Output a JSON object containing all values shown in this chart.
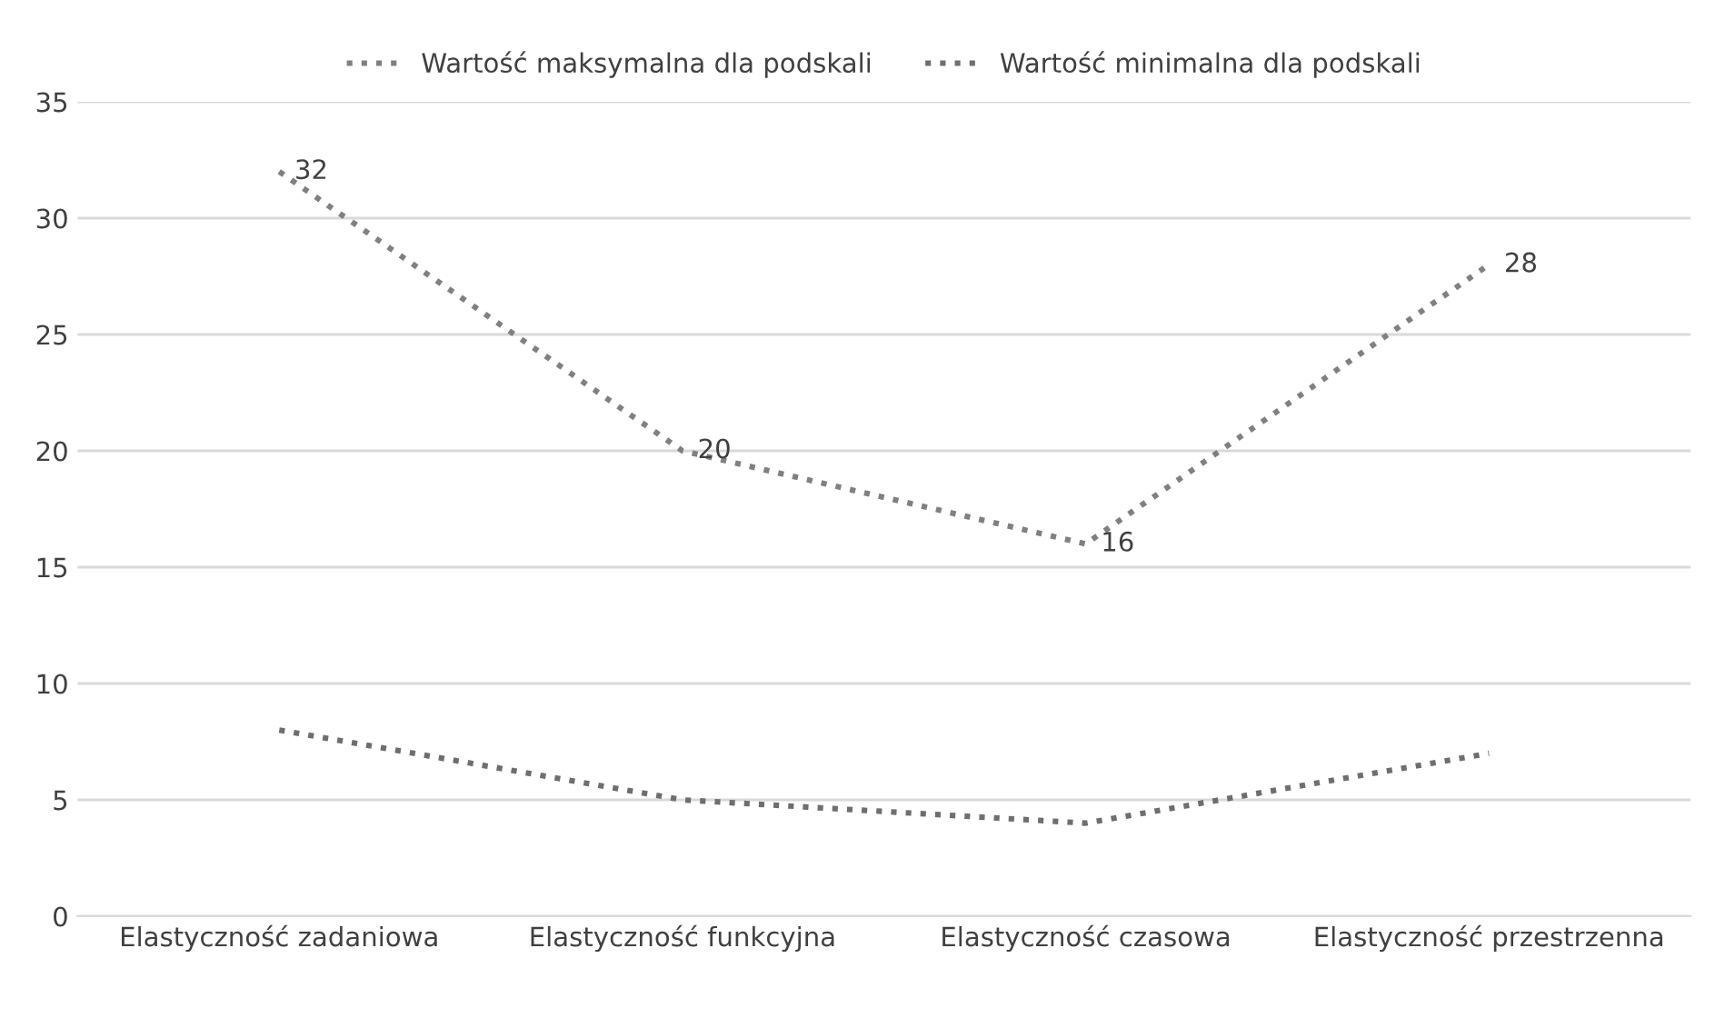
{
  "chart_data": {
    "type": "line",
    "categories": [
      "Elastyczność zadaniowa",
      "Elastyczność funkcyjna",
      "Elastyczność czasowa",
      "Elastyczność przestrzenna"
    ],
    "series": [
      {
        "name": "Wartość maksymalna dla podskali",
        "color": "#808080",
        "values": [
          32,
          20,
          16,
          28
        ],
        "value_labels": [
          "32",
          "20",
          "16",
          "28"
        ]
      },
      {
        "name": "Wartość minimalna dla podskali",
        "color": "#6e6e6e",
        "values": [
          8,
          5,
          4,
          7
        ]
      }
    ],
    "ylim": [
      0,
      35
    ],
    "yticks": [
      0,
      5,
      10,
      15,
      20,
      25,
      30,
      35
    ],
    "grid": "y",
    "legend": "top",
    "line_style": "dotted",
    "marker": "none"
  }
}
